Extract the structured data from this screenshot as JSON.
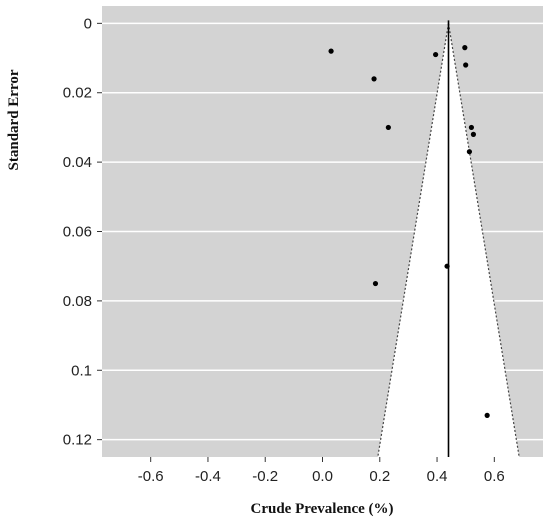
{
  "chart_data": {
    "type": "scatter",
    "subtype": "funnel plot",
    "title": "",
    "xlabel": "Crude Prevalence (%)",
    "ylabel": "Standard Error",
    "xlim": [
      -0.77,
      0.77
    ],
    "ylim": [
      0.125,
      -0.005
    ],
    "y_axis_inverted": true,
    "x_ticks": [
      -0.6,
      -0.4,
      -0.2,
      0.0,
      0.2,
      0.4,
      0.6
    ],
    "x_tick_labels": [
      "-0.6",
      "-0.4",
      "-0.2",
      "0.0",
      "0.2",
      "0.4",
      "0.6"
    ],
    "y_ticks": [
      0,
      0.02,
      0.04,
      0.06,
      0.08,
      0.1,
      0.12
    ],
    "y_tick_labels": [
      "0",
      "0.02",
      "0.04",
      "0.06",
      "0.08",
      "0.1",
      "0.12"
    ],
    "grid": "horizontal",
    "pooled_estimate": 0.44,
    "funnel_lower_at_se_max": 0.203,
    "funnel_upper_at_se_max": 0.677,
    "funnel_se_max": 0.12,
    "points": [
      {
        "x": 0.03,
        "y": 0.008
      },
      {
        "x": 0.18,
        "y": 0.016
      },
      {
        "x": 0.23,
        "y": 0.03
      },
      {
        "x": 0.185,
        "y": 0.075
      },
      {
        "x": 0.395,
        "y": 0.009
      },
      {
        "x": 0.435,
        "y": 0.07
      },
      {
        "x": 0.497,
        "y": 0.007
      },
      {
        "x": 0.5,
        "y": 0.012
      },
      {
        "x": 0.52,
        "y": 0.03
      },
      {
        "x": 0.527,
        "y": 0.032
      },
      {
        "x": 0.513,
        "y": 0.037
      },
      {
        "x": 0.575,
        "y": 0.113
      }
    ],
    "colors": {
      "panel_background": "#d3d3d3",
      "funnel_fill": "#ffffff",
      "gridline": "#ffffff",
      "point": "#000000",
      "pooled_line": "#000000",
      "funnel_edge": "#444444"
    }
  }
}
